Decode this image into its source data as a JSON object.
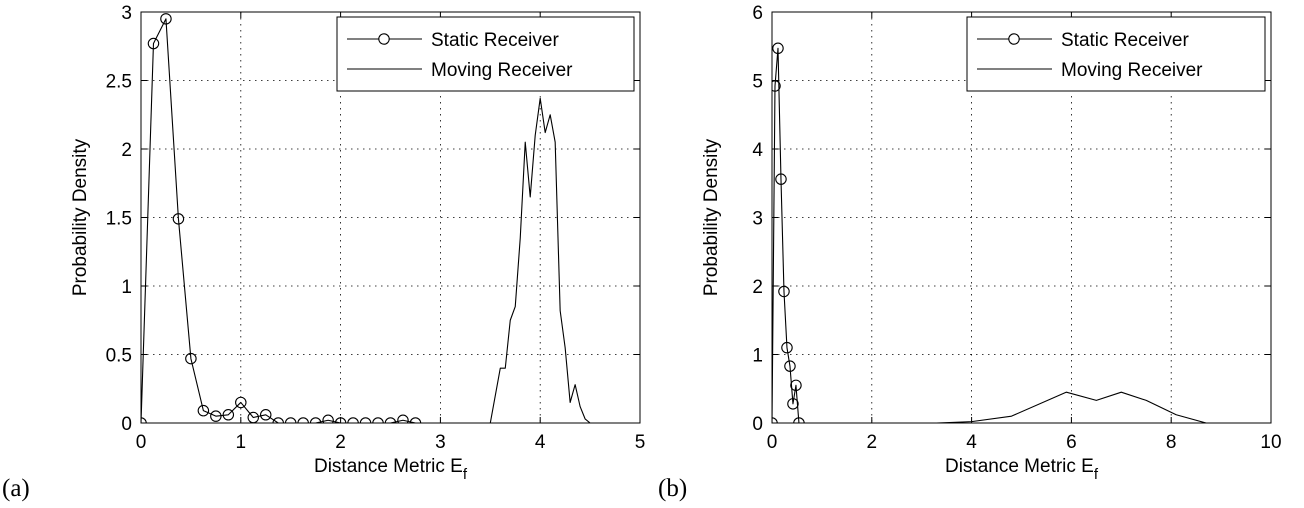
{
  "chart_data": [
    {
      "panel_label": "(a)",
      "type": "line",
      "xlabel": "Distance Metric E",
      "xlabel_sub": "f",
      "ylabel": "Probability Density",
      "xlim": [
        0,
        5
      ],
      "ylim": [
        0,
        3
      ],
      "xticks": [
        "0",
        "1",
        "2",
        "3",
        "4",
        "5"
      ],
      "yticks": [
        "0",
        "0.5",
        "1",
        "1.5",
        "2",
        "2.5",
        "3"
      ],
      "xtick_values": [
        0,
        1,
        2,
        3,
        4,
        5
      ],
      "ytick_values": [
        0,
        0.5,
        1,
        1.5,
        2,
        2.5,
        3
      ],
      "grid": true,
      "legend_position": "top-right",
      "series": [
        {
          "name": "Static Receiver",
          "marker": "circle",
          "x": [
            0,
            0.125,
            0.25,
            0.375,
            0.5,
            0.625,
            0.75,
            0.875,
            1.0,
            1.125,
            1.25,
            1.375,
            1.5,
            1.625,
            1.75,
            1.875,
            2.0,
            2.125,
            2.25,
            2.375,
            2.5,
            2.625,
            2.75
          ],
          "y": [
            0,
            2.77,
            2.95,
            1.49,
            0.47,
            0.09,
            0.05,
            0.06,
            0.15,
            0.04,
            0.06,
            0.0,
            0.0,
            0.0,
            0.0,
            0.02,
            0.0,
            0.0,
            0.0,
            0.0,
            0.0,
            0.02,
            0.0
          ]
        },
        {
          "name": "Moving Receiver",
          "marker": "none",
          "x": [
            3.5,
            3.6,
            3.65,
            3.7,
            3.75,
            3.8,
            3.85,
            3.9,
            3.95,
            4.0,
            4.05,
            4.1,
            4.15,
            4.2,
            4.25,
            4.3,
            4.35,
            4.4,
            4.45,
            4.5,
            4.55
          ],
          "y": [
            0,
            0.4,
            0.4,
            0.75,
            0.85,
            1.35,
            2.05,
            1.65,
            2.1,
            2.37,
            2.12,
            2.25,
            2.05,
            0.82,
            0.55,
            0.15,
            0.28,
            0.12,
            0.03,
            0.0,
            0.0
          ]
        }
      ]
    },
    {
      "panel_label": "(b)",
      "type": "line",
      "xlabel": "Distance Metric E",
      "xlabel_sub": "f",
      "ylabel": "Probability Density",
      "xlim": [
        0,
        10
      ],
      "ylim": [
        0,
        6
      ],
      "xticks": [
        "0",
        "2",
        "4",
        "6",
        "8",
        "10"
      ],
      "yticks": [
        "0",
        "1",
        "2",
        "3",
        "4",
        "5",
        "6"
      ],
      "xtick_values": [
        0,
        2,
        4,
        6,
        8,
        10
      ],
      "ytick_values": [
        0,
        1,
        2,
        3,
        4,
        5,
        6
      ],
      "grid": true,
      "legend_position": "top-right",
      "series": [
        {
          "name": "Static Receiver",
          "marker": "circle",
          "x": [
            0,
            0.06,
            0.12,
            0.18,
            0.24,
            0.3,
            0.36,
            0.42,
            0.48,
            0.54
          ],
          "y": [
            0,
            4.92,
            5.47,
            3.56,
            1.92,
            1.1,
            0.83,
            0.28,
            0.55,
            0.0
          ]
        },
        {
          "name": "Moving Receiver",
          "marker": "none",
          "x": [
            3.3,
            4.0,
            4.8,
            5.9,
            6.5,
            7.0,
            7.5,
            8.1,
            8.7
          ],
          "y": [
            0,
            0.02,
            0.1,
            0.45,
            0.33,
            0.45,
            0.33,
            0.12,
            0.0
          ]
        }
      ]
    }
  ]
}
